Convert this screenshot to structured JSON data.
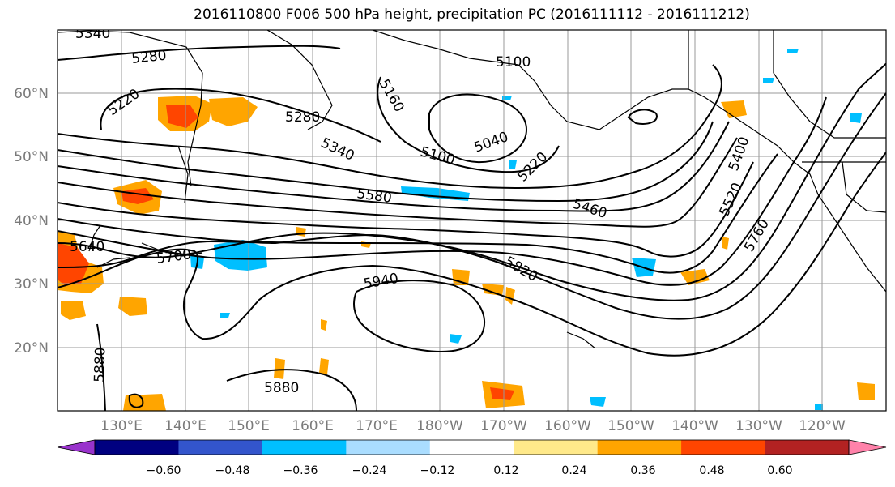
{
  "title": "2016110800 F006 500 hPa height, precipitation PC (2016111112 - 2016111212)",
  "map": {
    "lat_labels": [
      "60°N",
      "50°N",
      "40°N",
      "30°N",
      "20°N"
    ],
    "lon_labels": [
      "130°E",
      "140°E",
      "150°E",
      "160°E",
      "170°E",
      "180°W",
      "170°W",
      "160°W",
      "150°W",
      "140°W",
      "130°W",
      "120°W"
    ],
    "contour_labels": [
      "5340",
      "5280",
      "5220",
      "5160",
      "5100",
      "5280",
      "5340",
      "5100",
      "5040",
      "5220",
      "5580",
      "5460",
      "5400",
      "5520",
      "5640",
      "5700",
      "5820",
      "5760",
      "5940",
      "5880",
      "5880"
    ]
  },
  "colorbar": {
    "colors": [
      "#9933cc",
      "#000080",
      "#3355cc",
      "#00bfff",
      "#aaddff",
      "#ffffff",
      "#ffe98a",
      "#ffa500",
      "#ff4500",
      "#b22222",
      "#ff82aa"
    ],
    "tick_labels": [
      "−0.60",
      "−0.48",
      "−0.36",
      "−0.24",
      "−0.12",
      "0.12",
      "0.24",
      "0.36",
      "0.48",
      "0.60"
    ]
  }
}
